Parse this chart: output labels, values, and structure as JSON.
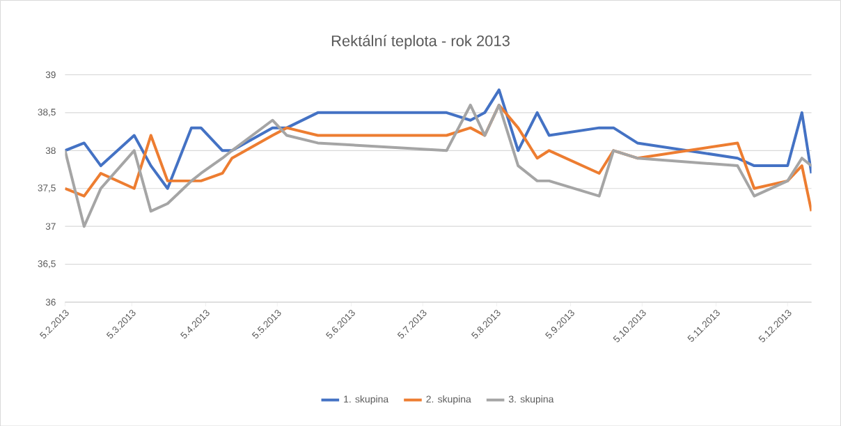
{
  "chart_data": {
    "type": "line",
    "title": "Rektální teplota - rok 2013",
    "x": [
      "2013-02-05",
      "2013-02-13",
      "2013-02-20",
      "2013-03-06",
      "2013-03-13",
      "2013-03-20",
      "2013-03-30",
      "2013-04-03",
      "2013-04-12",
      "2013-04-16",
      "2013-05-03",
      "2013-05-09",
      "2013-05-22",
      "2013-07-15",
      "2013-07-25",
      "2013-07-31",
      "2013-08-06",
      "2013-08-14",
      "2013-08-22",
      "2013-08-27",
      "2013-09-17",
      "2013-09-23",
      "2013-10-03",
      "2013-11-14",
      "2013-11-21",
      "2013-12-05",
      "2013-12-11",
      "2013-12-15"
    ],
    "series": [
      {
        "name": "1. skupina",
        "color": "#4472c4",
        "values": [
          38.0,
          38.1,
          37.8,
          38.2,
          37.8,
          37.5,
          38.3,
          38.3,
          38.0,
          38.0,
          38.3,
          38.3,
          38.5,
          38.5,
          38.4,
          38.5,
          38.8,
          38.0,
          38.5,
          38.2,
          38.3,
          38.3,
          38.1,
          37.9,
          37.8,
          37.8,
          38.5,
          37.7
        ]
      },
      {
        "name": "2. skupina",
        "color": "#ed7d31",
        "values": [
          37.5,
          37.4,
          37.7,
          37.5,
          38.2,
          37.6,
          37.6,
          37.6,
          37.7,
          37.9,
          38.2,
          38.3,
          38.2,
          38.2,
          38.3,
          38.2,
          38.6,
          38.3,
          37.9,
          38.0,
          37.7,
          38.0,
          37.9,
          38.1,
          37.5,
          37.6,
          37.8,
          37.2
        ]
      },
      {
        "name": "3. skupina",
        "color": "#a5a5a5",
        "values": [
          38.0,
          37.0,
          37.5,
          38.0,
          37.2,
          37.3,
          37.6,
          37.7,
          37.9,
          38.0,
          38.4,
          38.2,
          38.1,
          38.0,
          38.6,
          38.2,
          38.6,
          37.8,
          37.6,
          37.6,
          37.4,
          38.0,
          37.9,
          37.8,
          37.4,
          37.6,
          37.9,
          37.8
        ]
      }
    ],
    "xlim": [
      "2013-02-05",
      "2013-12-15"
    ],
    "xticks": [
      {
        "value": "2013-02-05",
        "label": "5.2.2013"
      },
      {
        "value": "2013-03-05",
        "label": "5.3.2013"
      },
      {
        "value": "2013-04-05",
        "label": "5.4.2013"
      },
      {
        "value": "2013-05-05",
        "label": "5.5.2013"
      },
      {
        "value": "2013-06-05",
        "label": "5.6.2013"
      },
      {
        "value": "2013-07-05",
        "label": "5.7.2013"
      },
      {
        "value": "2013-08-05",
        "label": "5.8.2013"
      },
      {
        "value": "2013-09-05",
        "label": "5.9.2013"
      },
      {
        "value": "2013-10-05",
        "label": "5.10.2013"
      },
      {
        "value": "2013-11-05",
        "label": "5.11.2013"
      },
      {
        "value": "2013-12-05",
        "label": "5.12.2013"
      }
    ],
    "ylim": [
      36,
      39
    ],
    "yticks": [
      {
        "value": 36,
        "label": "36"
      },
      {
        "value": 36.5,
        "label": "36,5"
      },
      {
        "value": 37,
        "label": "37"
      },
      {
        "value": 37.5,
        "label": "37,5"
      },
      {
        "value": 38,
        "label": "38"
      },
      {
        "value": 38.5,
        "label": "38,5"
      },
      {
        "value": 39,
        "label": "39"
      }
    ],
    "grid": "y",
    "legend": "bottom",
    "marker": "none",
    "line_style": "solid"
  }
}
